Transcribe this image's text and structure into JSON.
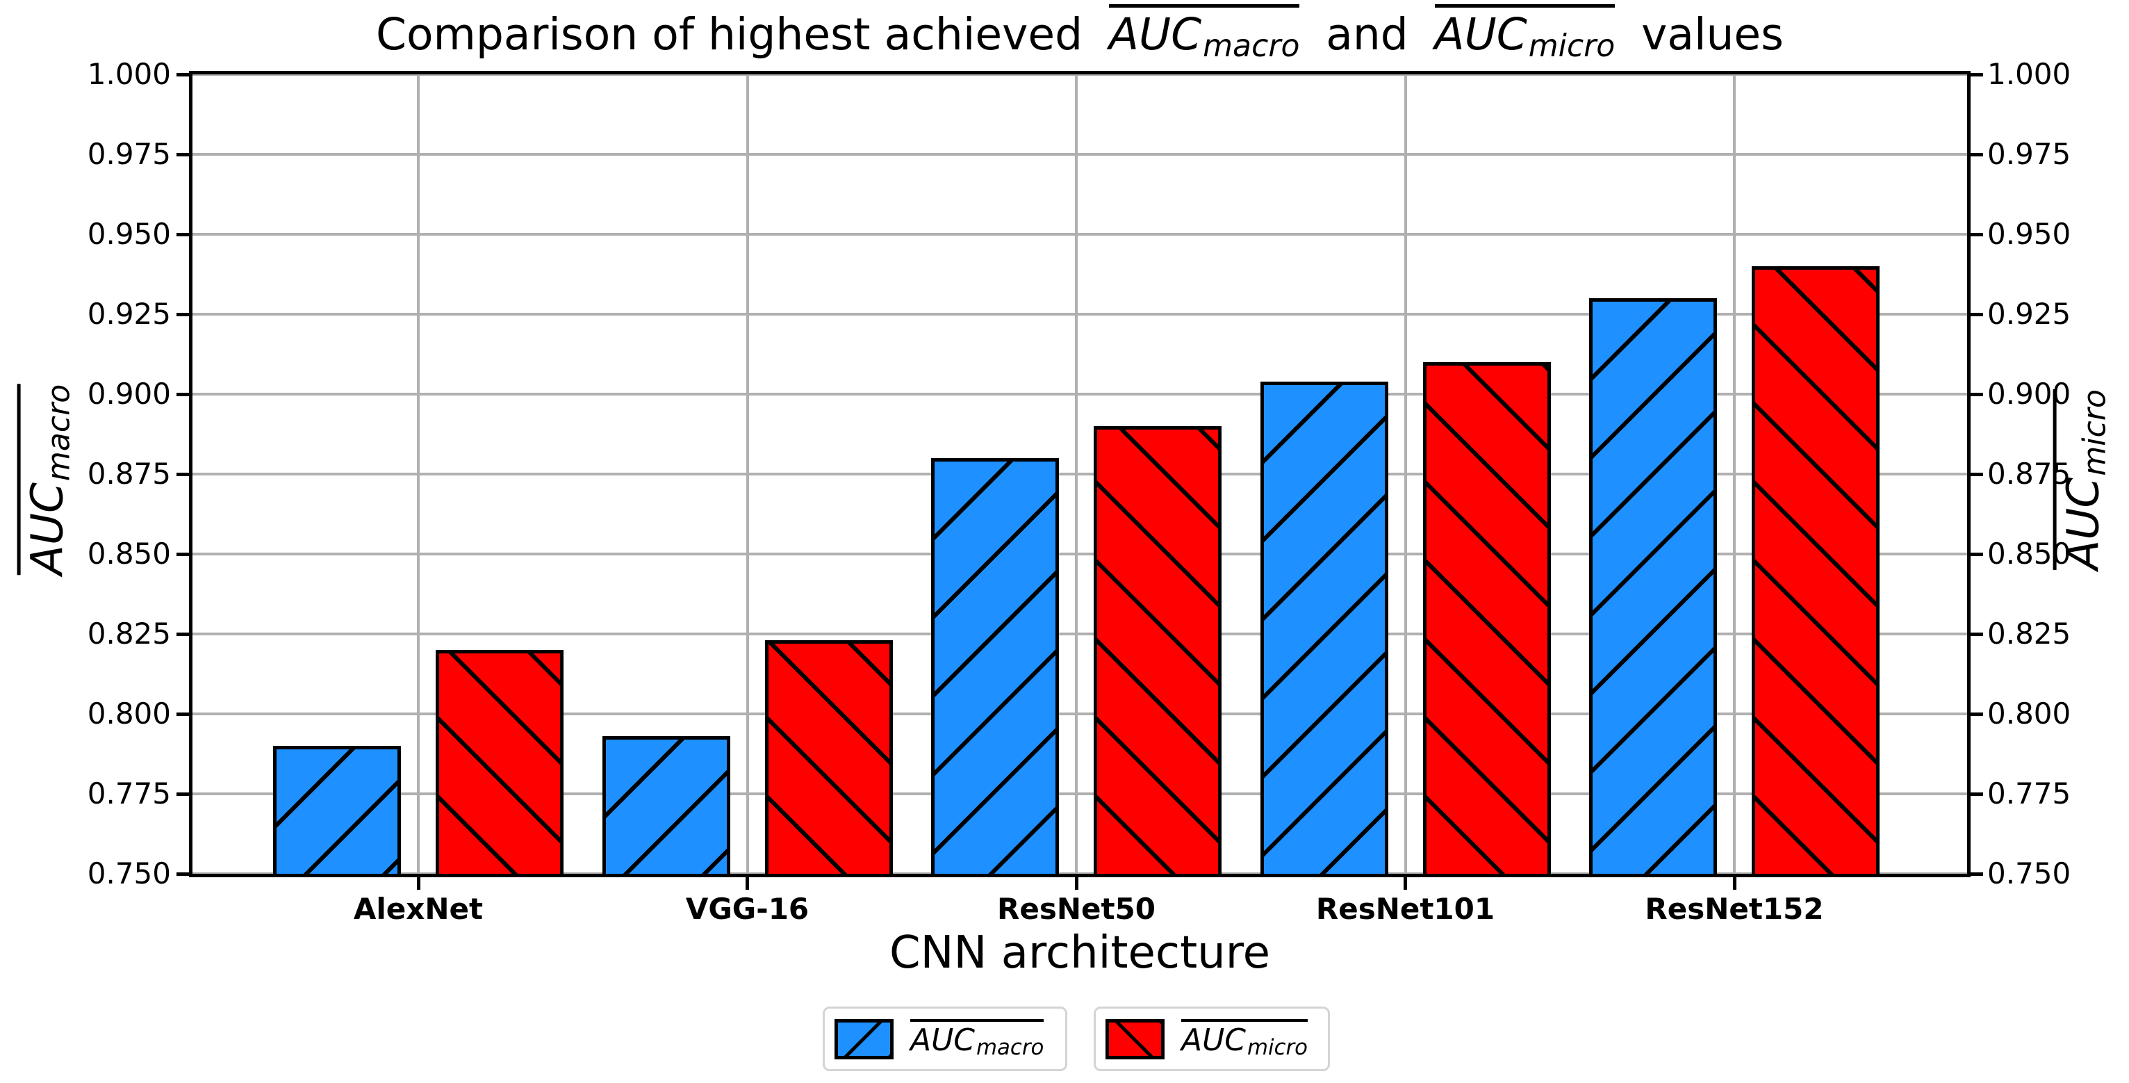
{
  "figure": {
    "title": {
      "prefix": "Comparison of highest achieved",
      "connector": "and",
      "suffix": "values"
    },
    "math": {
      "base": "AUC",
      "sub_macro": "macro",
      "sub_micro": "micro"
    },
    "xlabel": "CNN architecture"
  },
  "chart_data": {
    "type": "bar",
    "title": "Comparison of highest achieved AUC_macro and AUC_micro values",
    "categories": [
      "AlexNet",
      "VGG-16",
      "ResNet50",
      "ResNet101",
      "ResNet152"
    ],
    "series": [
      {
        "name": "AUC_macro",
        "label_base": "AUC",
        "label_sub": "macro",
        "color": "#1E90FF",
        "hatch": "/",
        "values": [
          0.79,
          0.793,
          0.88,
          0.904,
          0.93
        ]
      },
      {
        "name": "AUC_micro",
        "label_base": "AUC",
        "label_sub": "micro",
        "color": "#FF0000",
        "hatch": "\\",
        "values": [
          0.82,
          0.823,
          0.89,
          0.91,
          0.94
        ]
      }
    ],
    "xlabel": "CNN architecture",
    "ylabel_left": "AUC_macro",
    "ylabel_right": "AUC_micro",
    "ylim": [
      0.75,
      1.0
    ],
    "ytick_step": 0.025,
    "ytick_labels": [
      "0.750",
      "0.775",
      "0.800",
      "0.825",
      "0.850",
      "0.875",
      "0.900",
      "0.925",
      "0.950",
      "0.975",
      "1.000"
    ],
    "grid": true,
    "grid_color": "#b0b0b0",
    "legend_position": "lower center outside"
  },
  "colors": {
    "background": "#ffffff",
    "axis": "#000000",
    "grid": "#b0b0b0",
    "bar_macro": "#1E90FF",
    "bar_micro": "#FF0000",
    "legend_border": "#d4d4d4"
  }
}
